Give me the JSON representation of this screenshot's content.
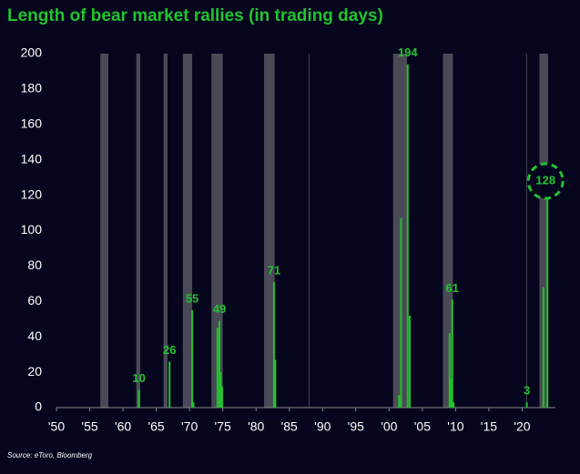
{
  "chart_data": {
    "type": "bar",
    "title": "Length of bear market rallies (in trading days)",
    "source": "Source: eToro, Bloomberg",
    "xlim": [
      1950,
      2025
    ],
    "xticks": [
      {
        "value": 1950,
        "label": "'50"
      },
      {
        "value": 1955,
        "label": "'55"
      },
      {
        "value": 1960,
        "label": "'60"
      },
      {
        "value": 1965,
        "label": "'65"
      },
      {
        "value": 1970,
        "label": "'70"
      },
      {
        "value": 1975,
        "label": "'75"
      },
      {
        "value": 1980,
        "label": "'80"
      },
      {
        "value": 1985,
        "label": "'85"
      },
      {
        "value": 1990,
        "label": "'90"
      },
      {
        "value": 1995,
        "label": "'95"
      },
      {
        "value": 2000,
        "label": "'00"
      },
      {
        "value": 2005,
        "label": "'05"
      },
      {
        "value": 2010,
        "label": "'10"
      },
      {
        "value": 2015,
        "label": "'15"
      },
      {
        "value": 2020,
        "label": "'20"
      }
    ],
    "ylim": [
      0,
      200
    ],
    "yticks": [
      0,
      20,
      40,
      60,
      80,
      100,
      120,
      140,
      160,
      180,
      200
    ],
    "grid": false,
    "shaded_periods": [
      [
        1956.6,
        1957.8
      ],
      [
        1962.0,
        1962.6
      ],
      [
        1966.1,
        1966.7
      ],
      [
        1969.0,
        1970.4
      ],
      [
        1973.3,
        1975.0
      ],
      [
        1981.2,
        1982.8
      ],
      [
        1987.9,
        1988.0
      ],
      [
        2000.6,
        2002.7
      ],
      [
        2008.1,
        2009.6
      ],
      [
        2020.6,
        2020.7
      ],
      [
        2022.6,
        2023.9
      ]
    ],
    "shade_color": "#4a4a56",
    "series": [
      {
        "color": "#22c32e",
        "show_labels": true,
        "highlight_index": 8,
        "x": [
          1962.4,
          1967.0,
          1970.4,
          1974.5,
          1982.7,
          2002.8,
          2009.5,
          2020.7,
          2023.8
        ],
        "values": [
          10,
          26,
          55,
          49,
          71,
          194,
          61,
          3,
          128
        ]
      },
      {
        "color": "#22c32e",
        "show_labels": false,
        "x": [
          1970.6,
          1974.2,
          1974.7,
          1974.9,
          1982.9,
          2001.5,
          2001.8,
          2003.1,
          2009.1,
          2009.3,
          2009.7,
          2023.2
        ],
        "values": [
          3,
          45,
          20,
          12,
          27,
          7,
          107,
          52,
          42,
          16,
          3,
          68
        ]
      }
    ]
  }
}
